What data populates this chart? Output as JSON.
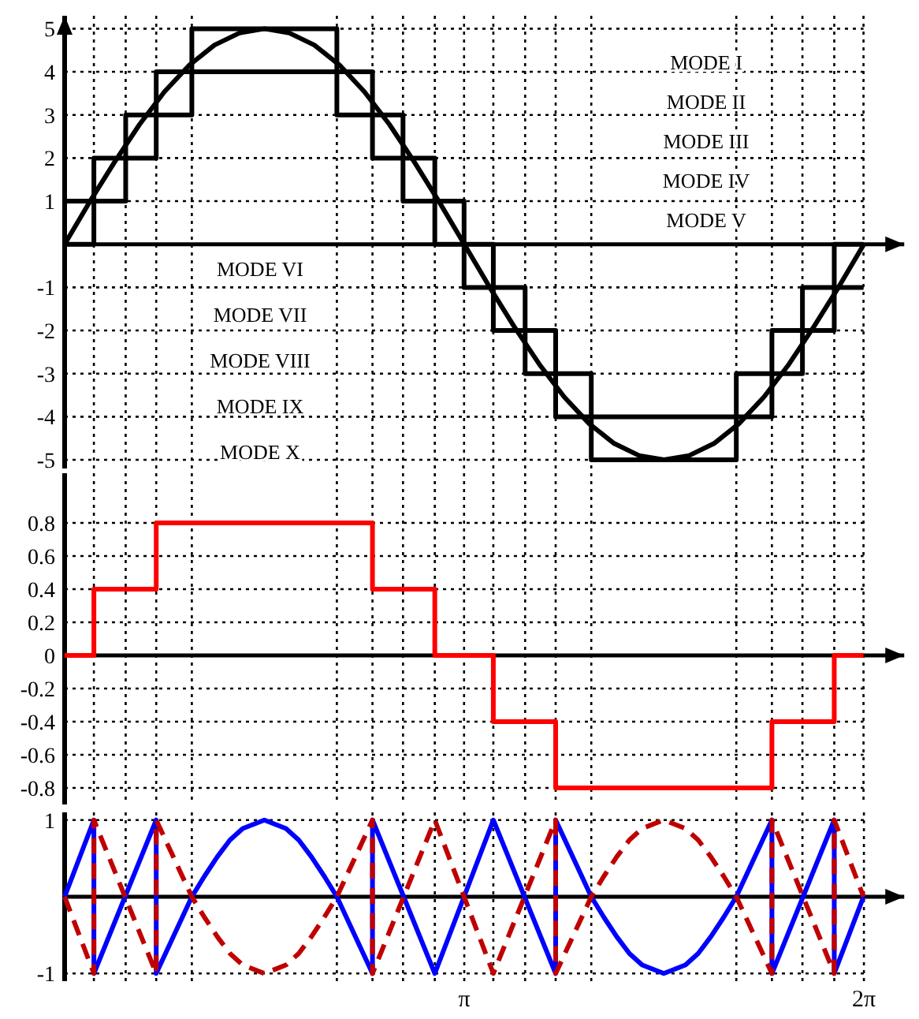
{
  "chart_data": [
    {
      "type": "line",
      "xlim": [
        0,
        6.6
      ],
      "ylim": [
        -5.2,
        5.3
      ],
      "yticks": [
        -5,
        -4,
        -3,
        -2,
        -1,
        1,
        2,
        3,
        4,
        5
      ],
      "tick_labels": "y",
      "grid": true,
      "xticks": [
        {
          "value": 0.23,
          "label": null
        },
        {
          "value": 0.48,
          "label": null
        },
        {
          "value": 0.72,
          "label": null
        },
        {
          "value": 1.0,
          "label": null
        },
        {
          "value": 2.14,
          "label": null
        },
        {
          "value": 2.42,
          "label": null
        },
        {
          "value": 2.66,
          "label": null
        },
        {
          "value": 2.91,
          "label": null
        },
        {
          "value": 3.14,
          "label": null
        },
        {
          "value": 3.37,
          "label": null
        },
        {
          "value": 3.62,
          "label": null
        },
        {
          "value": 3.86,
          "label": null
        },
        {
          "value": 4.14,
          "label": null
        },
        {
          "value": 5.28,
          "label": null
        },
        {
          "value": 5.56,
          "label": null
        },
        {
          "value": 5.8,
          "label": null
        },
        {
          "value": 6.05,
          "label": null
        },
        {
          "value": 6.28,
          "label": null
        }
      ],
      "annotations": [
        "MODE I",
        "MODE II",
        "MODE III",
        "MODE IV",
        "MODE V",
        "MODE VI",
        "MODE VII",
        "MODE VIII",
        "MODE IX",
        "MODE X"
      ],
      "series": [
        {
          "type": "step",
          "color": "#000000",
          "x": [
            0,
            0.23,
            0.48,
            0.72,
            1.0,
            2.14,
            2.42,
            2.66,
            2.91,
            3.14,
            3.37,
            3.62,
            3.86,
            4.14,
            5.28,
            5.56,
            5.8,
            6.05,
            6.28
          ],
          "values": [
            1,
            2,
            3,
            4,
            5,
            4,
            3,
            2,
            1,
            0,
            -1,
            -2,
            -3,
            -4,
            -3,
            -2,
            -1,
            0,
            0
          ]
        },
        {
          "type": "step",
          "color": "#000000",
          "x": [
            0,
            0.23,
            0.48,
            0.72,
            1.0,
            2.14,
            2.42,
            2.66,
            2.91,
            3.14,
            3.37,
            3.62,
            3.86,
            4.14,
            5.28,
            5.56,
            5.8,
            6.05,
            6.28
          ],
          "values": [
            0,
            1,
            2,
            3,
            4,
            3,
            2,
            1,
            0,
            -1,
            -2,
            -3,
            -4,
            -5,
            -4,
            -3,
            -2,
            -1,
            -1
          ]
        },
        {
          "color": "#000000",
          "x": [
            0,
            0.196,
            0.393,
            0.589,
            0.785,
            0.982,
            1.178,
            1.374,
            1.571,
            1.767,
            1.963,
            2.16,
            2.356,
            2.553,
            2.749,
            2.945,
            3.142,
            3.338,
            3.534,
            3.731,
            3.927,
            4.123,
            4.32,
            4.516,
            4.712,
            4.909,
            5.105,
            5.301,
            5.498,
            5.694,
            5.89,
            6.087,
            6.283
          ],
          "values": [
            0,
            0.98,
            1.91,
            2.78,
            3.54,
            4.16,
            4.62,
            4.9,
            5,
            4.9,
            4.62,
            4.16,
            3.54,
            2.78,
            1.91,
            0.98,
            0,
            -0.98,
            -1.91,
            -2.78,
            -3.54,
            -4.16,
            -4.62,
            -4.9,
            -5,
            -4.9,
            -4.62,
            -4.16,
            -3.54,
            -2.78,
            -1.91,
            -0.98,
            0
          ]
        }
      ]
    },
    {
      "type": "step",
      "xlim": [
        0,
        6.6
      ],
      "ylim": [
        -0.9,
        1.1
      ],
      "yticks": [
        -0.8,
        -0.6,
        -0.4,
        -0.2,
        0,
        0.2,
        0.4,
        0.6,
        0.8
      ],
      "tick_labels": "y",
      "grid": true,
      "xticks": [
        {
          "value": 0.23,
          "label": null
        },
        {
          "value": 0.48,
          "label": null
        },
        {
          "value": 0.72,
          "label": null
        },
        {
          "value": 1.0,
          "label": null
        },
        {
          "value": 2.14,
          "label": null
        },
        {
          "value": 2.42,
          "label": null
        },
        {
          "value": 2.66,
          "label": null
        },
        {
          "value": 2.91,
          "label": null
        },
        {
          "value": 3.14,
          "label": null
        },
        {
          "value": 3.37,
          "label": null
        },
        {
          "value": 3.62,
          "label": null
        },
        {
          "value": 3.86,
          "label": null
        },
        {
          "value": 4.14,
          "label": null
        },
        {
          "value": 5.28,
          "label": null
        },
        {
          "value": 5.56,
          "label": null
        },
        {
          "value": 5.8,
          "label": null
        },
        {
          "value": 6.05,
          "label": null
        },
        {
          "value": 6.28,
          "label": null
        }
      ],
      "series": [
        {
          "color": "#ff0000",
          "x": [
            0,
            0.23,
            0.72,
            2.42,
            2.91,
            3.37,
            3.86,
            5.56,
            6.05,
            6.28
          ],
          "values": [
            0,
            0.4,
            0.8,
            0.4,
            0,
            -0.4,
            -0.8,
            -0.4,
            0,
            0
          ]
        }
      ]
    },
    {
      "type": "line",
      "xlim": [
        0,
        6.6
      ],
      "ylim": [
        -1.1,
        1.1
      ],
      "yticks": [
        -1,
        1
      ],
      "grid": true,
      "xticks": [
        {
          "value": 0.23,
          "label": null
        },
        {
          "value": 0.48,
          "label": null
        },
        {
          "value": 0.72,
          "label": null
        },
        {
          "value": 1.0,
          "label": null
        },
        {
          "value": 2.14,
          "label": null
        },
        {
          "value": 2.42,
          "label": null
        },
        {
          "value": 2.66,
          "label": null
        },
        {
          "value": 2.91,
          "label": null
        },
        {
          "value": 3.1416,
          "label": "π"
        },
        {
          "value": 3.37,
          "label": null
        },
        {
          "value": 3.62,
          "label": null
        },
        {
          "value": 3.86,
          "label": null
        },
        {
          "value": 4.14,
          "label": null
        },
        {
          "value": 5.28,
          "label": null
        },
        {
          "value": 5.56,
          "label": null
        },
        {
          "value": 5.8,
          "label": null
        },
        {
          "value": 6.05,
          "label": null
        },
        {
          "value": 6.2832,
          "label": "2π"
        }
      ],
      "series": [
        {
          "color": "#0000ff",
          "line_style": "solid",
          "x": [
            0,
            0.23,
            0.23,
            0.72,
            0.72,
            1.0,
            1.1,
            1.2,
            1.3,
            1.4,
            1.57,
            1.74,
            1.84,
            1.94,
            2.04,
            2.14,
            2.42,
            2.42,
            2.91,
            3.37,
            3.86,
            3.86,
            4.14,
            4.24,
            4.34,
            4.44,
            4.54,
            4.71,
            4.88,
            4.98,
            5.08,
            5.18,
            5.28,
            5.56,
            5.56,
            6.05,
            6.05,
            6.28
          ],
          "values": [
            0,
            1,
            -1,
            1,
            -1,
            0,
            0.27,
            0.52,
            0.74,
            0.89,
            1,
            0.89,
            0.74,
            0.52,
            0.27,
            0,
            -1,
            1,
            -1,
            1,
            -1,
            1,
            0,
            -0.27,
            -0.52,
            -0.74,
            -0.89,
            -1,
            -0.89,
            -0.74,
            -0.52,
            -0.27,
            0,
            1,
            -1,
            1,
            -1,
            0
          ]
        },
        {
          "color": "#c00000",
          "line_style": "dashed",
          "x": [
            0,
            0.23,
            0.23,
            0.72,
            0.72,
            1.0,
            1.1,
            1.2,
            1.3,
            1.4,
            1.57,
            1.74,
            1.84,
            1.94,
            2.04,
            2.14,
            2.42,
            2.42,
            2.91,
            3.37,
            3.86,
            3.86,
            4.14,
            4.24,
            4.34,
            4.44,
            4.54,
            4.71,
            4.88,
            4.98,
            5.08,
            5.18,
            5.28,
            5.56,
            5.56,
            6.05,
            6.05,
            6.28
          ],
          "values": [
            0,
            -1,
            1,
            -1,
            1,
            0,
            -0.27,
            -0.52,
            -0.74,
            -0.89,
            -1,
            -0.89,
            -0.74,
            -0.52,
            -0.27,
            0,
            1,
            -1,
            1,
            -1,
            1,
            -1,
            0,
            0.27,
            0.52,
            0.74,
            0.89,
            1,
            0.89,
            0.74,
            0.52,
            0.27,
            0,
            -1,
            1,
            -1,
            1,
            0
          ]
        }
      ]
    }
  ]
}
